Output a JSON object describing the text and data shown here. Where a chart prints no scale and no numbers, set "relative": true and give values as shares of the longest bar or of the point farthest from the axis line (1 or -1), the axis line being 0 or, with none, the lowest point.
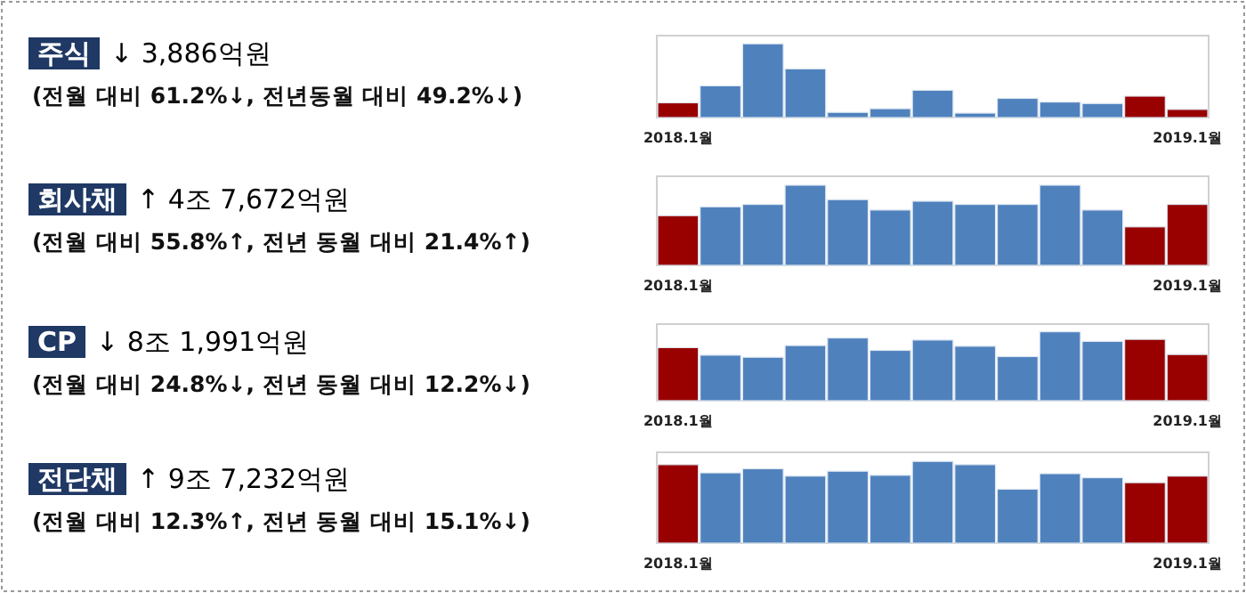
{
  "chart_data": [
    {
      "type": "bar",
      "annotations": [
        "주식",
        "↓ 3,886억원",
        "(전월 대비 61.2%↓, 전년동월 대비 49.2%↓)"
      ],
      "relative": true,
      "categories": [
        "2018.1월",
        null,
        null,
        null,
        null,
        null,
        null,
        null,
        null,
        null,
        null,
        null,
        "2019.1월"
      ],
      "values": [
        0.2,
        0.43,
        1,
        0.66,
        0.07,
        0.12,
        0.37,
        0.06,
        0.26,
        0.21,
        0.19,
        0.29,
        0.11
      ],
      "colors": [
        "#990000",
        "#4f81bd",
        "#4f81bd",
        "#4f81bd",
        "#4f81bd",
        "#4f81bd",
        "#4f81bd",
        "#4f81bd",
        "#4f81bd",
        "#4f81bd",
        "#4f81bd",
        "#990000",
        "#990000"
      ]
    },
    {
      "type": "bar",
      "annotations": [
        "회사채",
        "↑ 4조 7,672억원",
        "(전월 대비 55.8%↑, 전년 동월 대비 21.4%↑)"
      ],
      "relative": true,
      "categories": [
        "2018.1월",
        null,
        null,
        null,
        null,
        null,
        null,
        null,
        null,
        null,
        null,
        null,
        "2019.1월"
      ],
      "values": [
        0.62,
        0.73,
        0.76,
        1,
        0.82,
        0.69,
        0.8,
        0.76,
        0.76,
        1,
        0.69,
        0.48,
        0.76
      ],
      "colors": [
        "#990000",
        "#4f81bd",
        "#4f81bd",
        "#4f81bd",
        "#4f81bd",
        "#4f81bd",
        "#4f81bd",
        "#4f81bd",
        "#4f81bd",
        "#4f81bd",
        "#4f81bd",
        "#990000",
        "#990000"
      ]
    },
    {
      "type": "bar",
      "annotations": [
        "CP",
        "↓ 8조 1,991억원",
        "(전월 대비 24.8%↓, 전년 동월 대비 12.2%↓)"
      ],
      "relative": true,
      "categories": [
        "2018.1월",
        null,
        null,
        null,
        null,
        null,
        null,
        null,
        null,
        null,
        null,
        null,
        "2019.1월"
      ],
      "values": [
        0.77,
        0.66,
        0.63,
        0.8,
        0.91,
        0.73,
        0.88,
        0.79,
        0.64,
        1,
        0.86,
        0.89,
        0.67
      ],
      "colors": [
        "#990000",
        "#4f81bd",
        "#4f81bd",
        "#4f81bd",
        "#4f81bd",
        "#4f81bd",
        "#4f81bd",
        "#4f81bd",
        "#4f81bd",
        "#4f81bd",
        "#4f81bd",
        "#990000",
        "#990000"
      ]
    },
    {
      "type": "bar",
      "annotations": [
        "전단채",
        "↑ 9조 7,232억원",
        "(전월 대비 12.3%↑, 전년 동월 대비 15.1%↓)"
      ],
      "relative": true,
      "categories": [
        "2018.1월",
        null,
        null,
        null,
        null,
        null,
        null,
        null,
        null,
        null,
        null,
        null,
        "2019.1월"
      ],
      "values": [
        0.96,
        0.86,
        0.91,
        0.82,
        0.88,
        0.83,
        1,
        0.96,
        0.66,
        0.85,
        0.8,
        0.74,
        0.82
      ],
      "colors": [
        "#990000",
        "#4f81bd",
        "#4f81bd",
        "#4f81bd",
        "#4f81bd",
        "#4f81bd",
        "#4f81bd",
        "#4f81bd",
        "#4f81bd",
        "#4f81bd",
        "#4f81bd",
        "#990000",
        "#990000"
      ]
    }
  ]
}
